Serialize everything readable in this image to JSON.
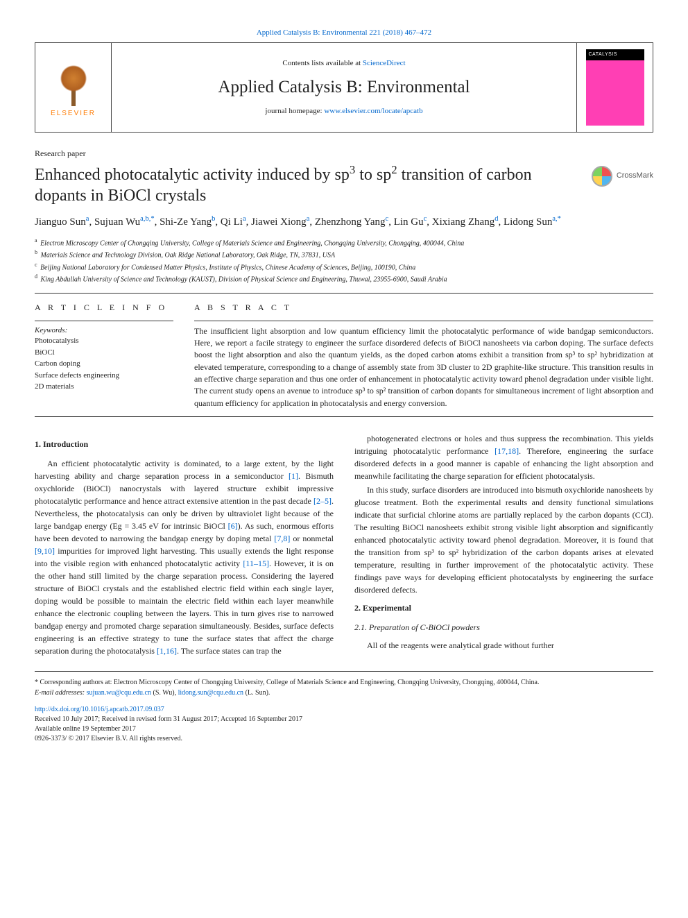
{
  "top_ref": {
    "text": "Applied Catalysis B: Environmental 221 (2018) 467–472"
  },
  "header": {
    "contents_prefix": "Contents lists available at ",
    "contents_link": "ScienceDirect",
    "journal_name": "Applied Catalysis B: Environmental",
    "homepage_prefix": "journal homepage: ",
    "homepage_link": "www.elsevier.com/locate/apcatb",
    "elsevier_label": "ELSEVIER",
    "cover_band": "CATALYSIS"
  },
  "paper_type": "Research paper",
  "title_parts": {
    "p1": "Enhanced photocatalytic activity induced by sp",
    "sup1": "3",
    "p2": " to sp",
    "sup2": "2",
    "p3": " transition of carbon dopants in BiOCl crystals"
  },
  "crossmark_label": "CrossMark",
  "authors_html": "Jianguo Sun<span class='sup'>a</span>, Sujuan Wu<span class='sup'>a,b,*</span>, Shi-Ze Yang<span class='sup'>b</span>, Qi Li<span class='sup'>a</span>, Jiawei Xiong<span class='sup'>a</span>, Zhenzhong Yang<span class='sup'>c</span>, Lin Gu<span class='sup'>c</span>, Xixiang Zhang<span class='sup'>d</span>, Lidong Sun<span class='sup'>a,*</span>",
  "affiliations": [
    {
      "tag": "a",
      "text": "Electron Microscopy Center of Chongqing University, College of Materials Science and Engineering, Chongqing University, Chongqing, 400044, China"
    },
    {
      "tag": "b",
      "text": "Materials Science and Technology Division, Oak Ridge National Laboratory, Oak Ridge, TN, 37831, USA"
    },
    {
      "tag": "c",
      "text": "Beijing National Laboratory for Condensed Matter Physics, Institute of Physics, Chinese Academy of Sciences, Beijing, 100190, China"
    },
    {
      "tag": "d",
      "text": "King Abdullah University of Science and Technology (KAUST), Division of Physical Science and Engineering, Thuwal, 23955-6900, Saudi Arabia"
    }
  ],
  "article_info": {
    "heading": "A R T I C L E  I N F O",
    "kw_label": "Keywords:",
    "keywords": [
      "Photocatalysis",
      "BiOCl",
      "Carbon doping",
      "Surface defects engineering",
      "2D materials"
    ]
  },
  "abstract": {
    "heading": "A B S T R A C T",
    "text": "The insufficient light absorption and low quantum efficiency limit the photocatalytic performance of wide bandgap semiconductors. Here, we report a facile strategy to engineer the surface disordered defects of BiOCl nanosheets via carbon doping. The surface defects boost the light absorption and also the quantum yields, as the doped carbon atoms exhibit a transition from sp³ to sp² hybridization at elevated temperature, corresponding to a change of assembly state from 3D cluster to 2D graphite-like structure. This transition results in an effective charge separation and thus one order of enhancement in photocatalytic activity toward phenol degradation under visible light. The current study opens an avenue to introduce sp³ to sp² transition of carbon dopants for simultaneous increment of light absorption and quantum efficiency for application in photocatalysis and energy conversion."
  },
  "sections": {
    "s1_title": "1. Introduction",
    "s1_p1": "An efficient photocatalytic activity is dominated, to a large extent, by the light harvesting ability and charge separation process in a semiconductor [1]. Bismuth oxychloride (BiOCl) nanocrystals with layered structure exhibit impressive photocatalytic performance and hence attract extensive attention in the past decade [2–5]. Nevertheless, the photocatalysis can only be driven by ultraviolet light because of the large bandgap energy (Eg = 3.45 eV for intrinsic BiOCl [6]). As such, enormous efforts have been devoted to narrowing the bandgap energy by doping metal [7,8] or nonmetal [9,10] impurities for improved light harvesting. This usually extends the light response into the visible region with enhanced photocatalytic activity [11–15]. However, it is on the other hand still limited by the charge separation process. Considering the layered structure of BiOCl crystals and the established electric field within each single layer, doping would be possible to maintain the electric field within each layer meanwhile enhance the electronic coupling between the layers. This in turn gives rise to narrowed bandgap energy and promoted charge separation simultaneously. Besides, surface defects engineering is an effective strategy to tune the surface states that affect the charge separation during the photocatalysis [1,16]. The surface states can trap the",
    "s1_p2": "photogenerated electrons or holes and thus suppress the recombination. This yields intriguing photocatalytic performance [17,18]. Therefore, engineering the surface disordered defects in a good manner is capable of enhancing the light absorption and meanwhile facilitating the charge separation for efficient photocatalysis.",
    "s1_p3": "In this study, surface disorders are introduced into bismuth oxychloride nanosheets by glucose treatment. Both the experimental results and density functional simulations indicate that surficial chlorine atoms are partially replaced by the carbon dopants (CCl). The resulting BiOCl nanosheets exhibit strong visible light absorption and significantly enhanced photocatalytic activity toward phenol degradation. Moreover, it is found that the transition from sp³ to sp² hybridization of the carbon dopants arises at elevated temperature, resulting in further improvement of the photocatalytic activity. These findings pave ways for developing efficient photocatalysts by engineering the surface disordered defects.",
    "s2_title": "2. Experimental",
    "s2_1_title": "2.1. Preparation of C-BiOCl powders",
    "s2_1_p1": "All of the reagents were analytical grade without further"
  },
  "footnotes": {
    "corr": "* Corresponding authors at: Electron Microscopy Center of Chongqing University, College of Materials Science and Engineering, Chongqing University, Chongqing, 400044, China.",
    "emails_label": "E-mail addresses: ",
    "email1": "sujuan.wu@cqu.edu.cn",
    "email1_who": " (S. Wu), ",
    "email2": "lidong.sun@cqu.edu.cn",
    "email2_who": " (L. Sun)."
  },
  "footmeta": {
    "doi": "http://dx.doi.org/10.1016/j.apcatb.2017.09.037",
    "received": "Received 10 July 2017; Received in revised form 31 August 2017; Accepted 16 September 2017",
    "online": "Available online 19 September 2017",
    "issn": "0926-3373/ © 2017 Elsevier B.V. All rights reserved."
  },
  "colors": {
    "link": "#0066cc",
    "cover": "#ff3fb4",
    "elsevier_orange": "#ff7a00"
  }
}
